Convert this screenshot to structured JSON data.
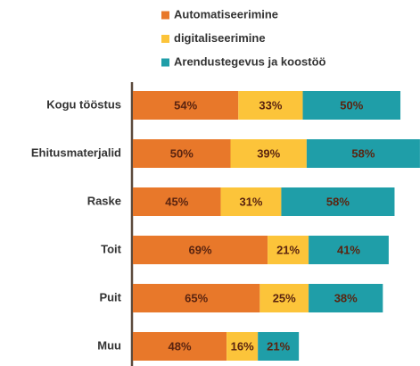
{
  "chart_data": {
    "type": "stacked-barh",
    "categories": [
      "Kogu tööstus",
      "Ehitusmaterjalid",
      "Raske",
      "Toit",
      "Puit",
      "Muu"
    ],
    "series": [
      {
        "name": "Automatiseerimine",
        "color": "#e8782a",
        "values": [
          54,
          50,
          45,
          69,
          65,
          48
        ],
        "value_labels": [
          "54%",
          "50%",
          "45%",
          "69%",
          "65%",
          "48%"
        ]
      },
      {
        "name": "digitaliseerimine",
        "color": "#fcc43a",
        "values": [
          33,
          39,
          31,
          21,
          25,
          16
        ],
        "value_labels": [
          "33%",
          "39%",
          "31%",
          "21%",
          "25%",
          "16%"
        ]
      },
      {
        "name": "Arendustegevus ja koostöö",
        "color": "#1f9ea8",
        "values": [
          50,
          58,
          58,
          41,
          38,
          21
        ],
        "value_labels": [
          "50%",
          "58%",
          "58%",
          "41%",
          "38%",
          "21%"
        ]
      }
    ],
    "legend": "top"
  }
}
